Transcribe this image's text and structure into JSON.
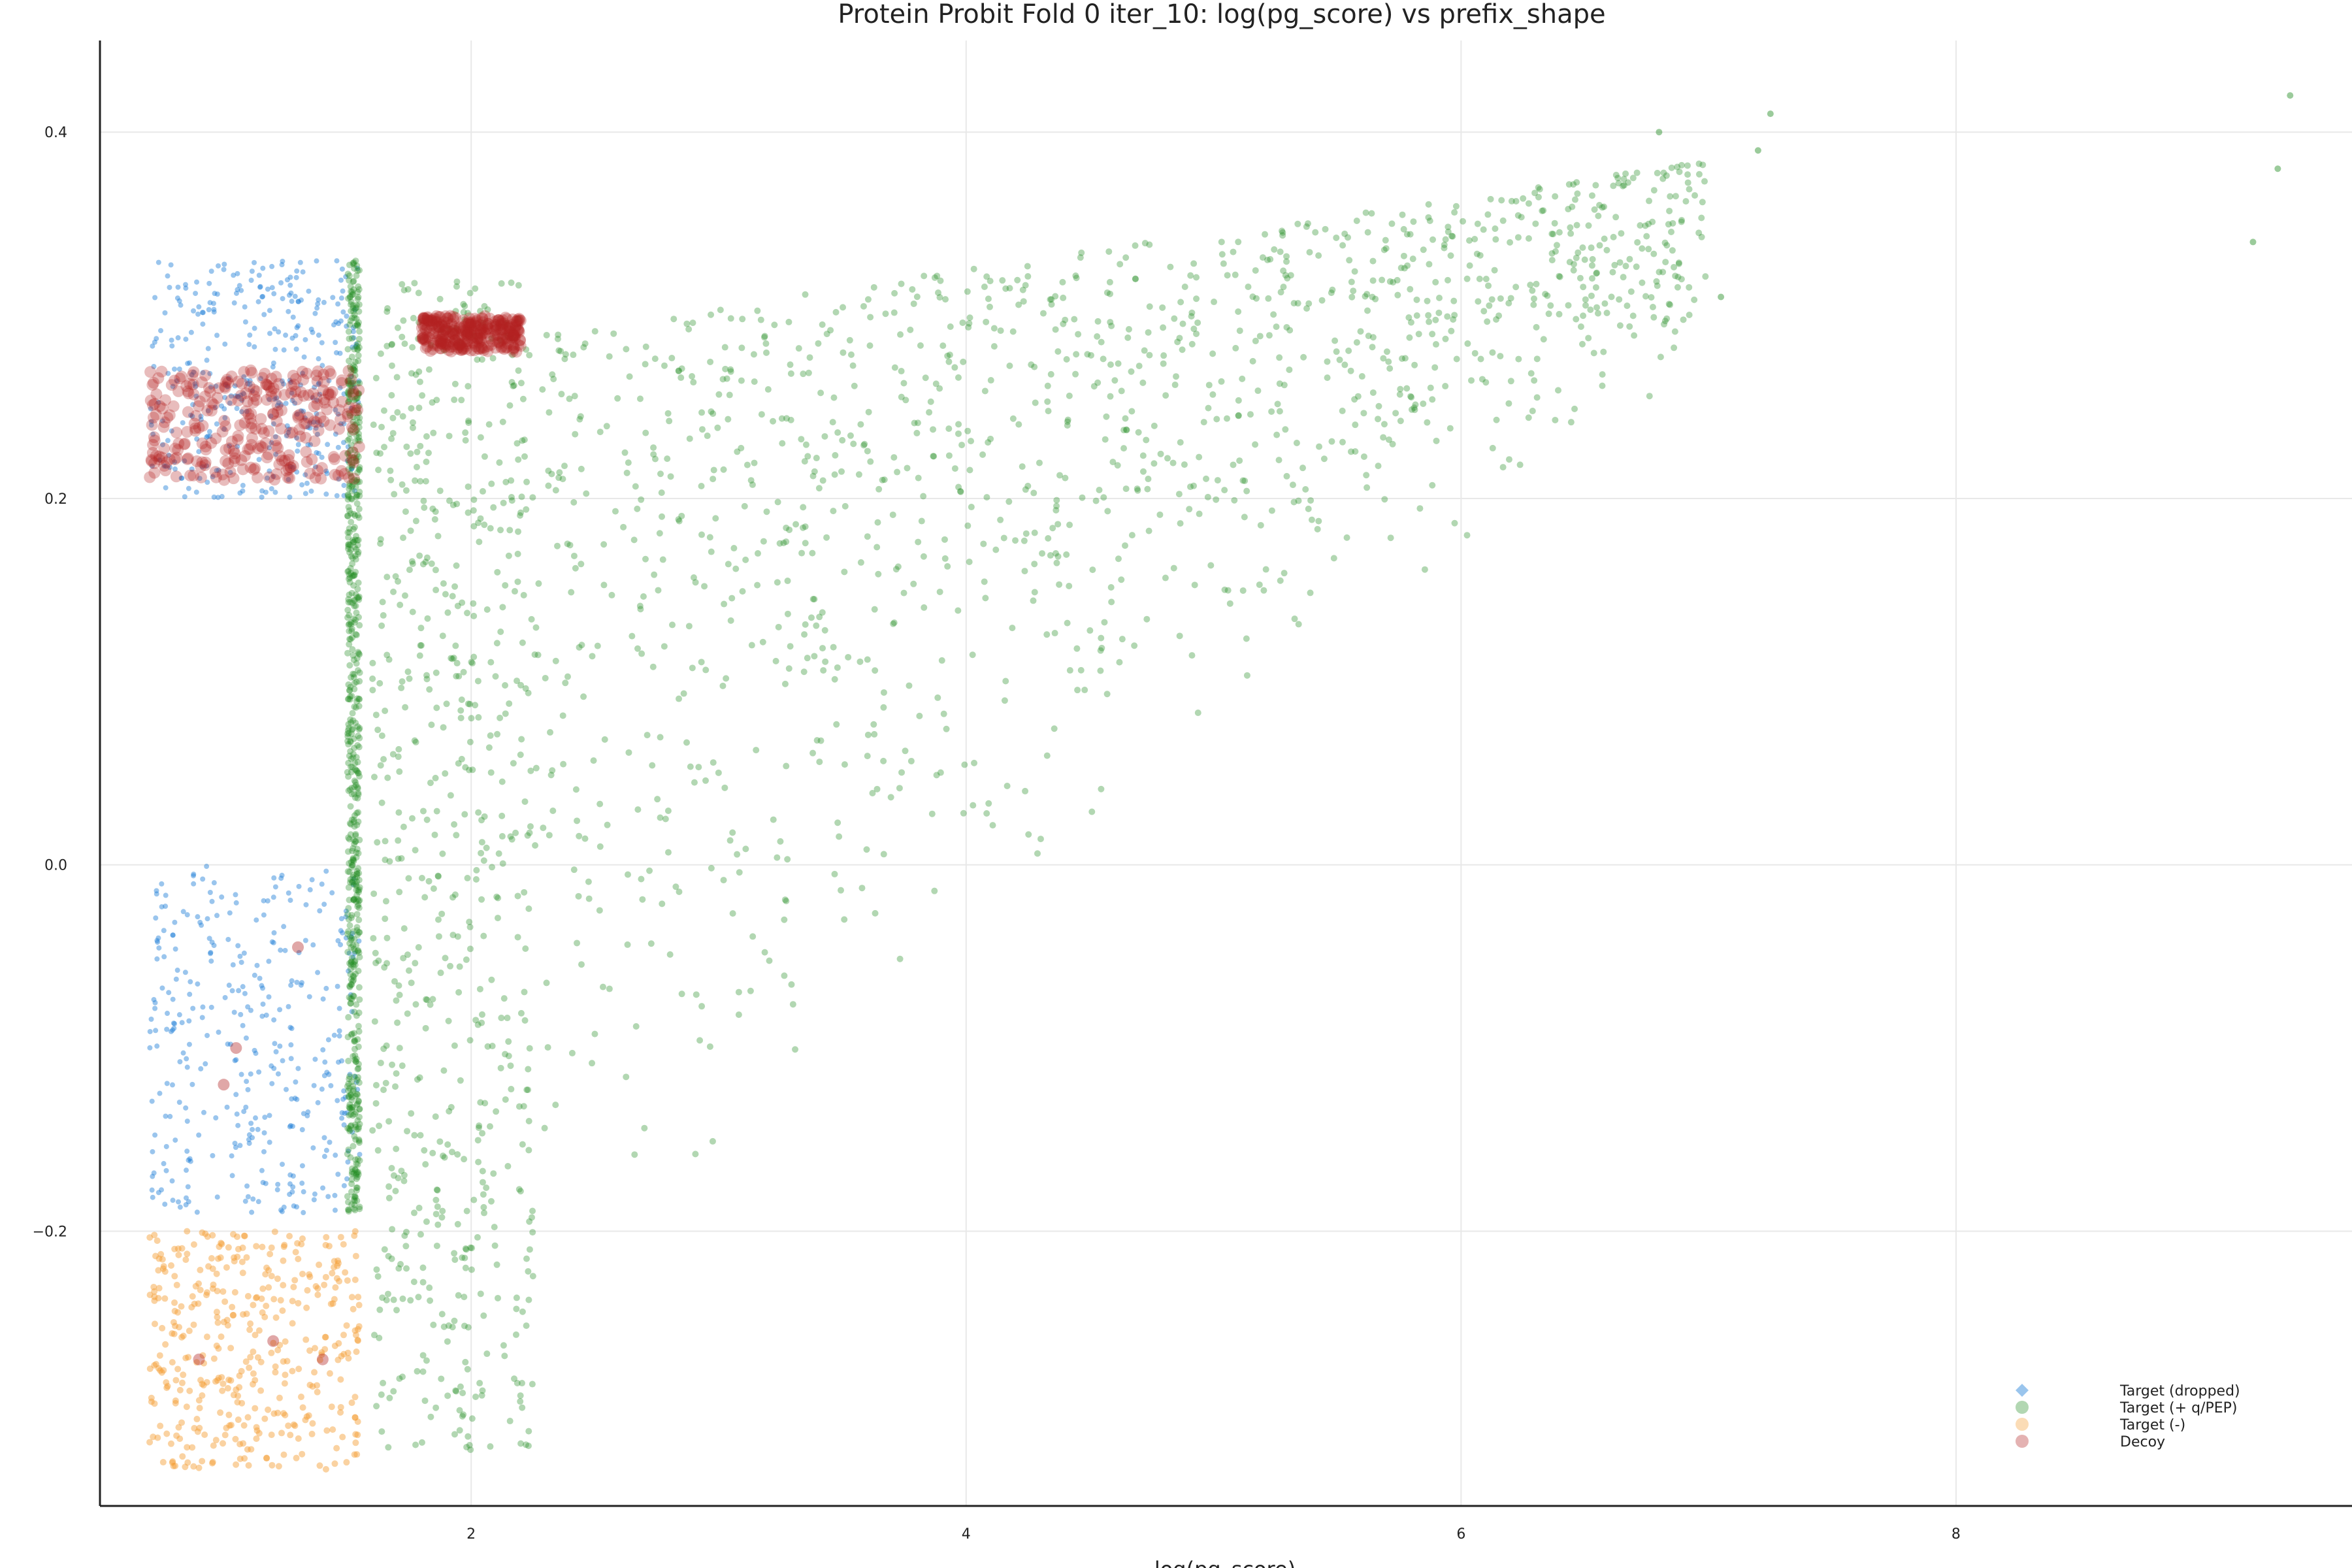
{
  "chart_data": {
    "type": "scatter",
    "title": "Protein Probit Fold 0 iter_10: log(pg_score) vs prefix_shape",
    "xlabel": "log(pg_score)",
    "ylabel": "",
    "xlim": [
      0.5,
      9.6
    ],
    "ylim": [
      -0.35,
      0.45
    ],
    "xticks": [
      2,
      4,
      6,
      8
    ],
    "yticks": [
      -0.2,
      0.0,
      0.2,
      0.4
    ],
    "xtick_labels": [
      "2",
      "4",
      "6",
      "8"
    ],
    "ytick_labels": [
      "−0.2",
      "0.0",
      "0.2",
      "0.4"
    ],
    "grid": true,
    "legend_position": "bottom-right",
    "series": [
      {
        "name": "Target (dropped)",
        "color": "#1f7fd8",
        "marker": "diamond",
        "clusters": [
          {
            "x": [
              0.7,
              1.55
            ],
            "y": [
              0.2,
              0.33
            ]
          },
          {
            "x": [
              0.7,
              1.55
            ],
            "y": [
              -0.19,
              0.0
            ]
          }
        ]
      },
      {
        "name": "Target (+ q/PEP)",
        "color": "#228b22",
        "marker": "circle",
        "clusters": [
          {
            "x": [
              1.5,
              1.55
            ],
            "y": [
              -0.19,
              0.33
            ]
          },
          {
            "x": [
              1.6,
              2.25
            ],
            "y": [
              -0.32,
              0.32
            ]
          },
          {
            "x": [
              2.25,
              4.5
            ],
            "y": [
              -0.25,
              0.36
            ]
          },
          {
            "x": [
              4.5,
              7.0
            ],
            "y": [
              0.0,
              0.39
            ]
          }
        ],
        "points": [
          [
            7.25,
            0.41
          ],
          [
            7.2,
            0.39
          ],
          [
            9.35,
            0.42
          ],
          [
            9.3,
            0.38
          ],
          [
            9.2,
            0.34
          ],
          [
            7.05,
            0.31
          ],
          [
            6.8,
            0.4
          ]
        ]
      },
      {
        "name": "Target (-)",
        "color": "#f39c2e",
        "marker": "circle",
        "clusters": [
          {
            "x": [
              0.7,
              1.55
            ],
            "y": [
              -0.33,
              -0.2
            ]
          }
        ]
      },
      {
        "name": "Decoy",
        "color": "#b22222",
        "marker": "circle",
        "clusters": [
          {
            "x": [
              0.7,
              1.55
            ],
            "y": [
              0.21,
              0.27
            ]
          },
          {
            "x": [
              1.8,
              2.2
            ],
            "y": [
              0.28,
              0.3
            ]
          }
        ],
        "points": [
          [
            0.9,
            -0.27
          ],
          [
            1.2,
            -0.26
          ],
          [
            1.4,
            -0.27
          ],
          [
            1.0,
            -0.12
          ],
          [
            1.3,
            -0.045
          ],
          [
            1.05,
            -0.1
          ]
        ]
      }
    ]
  }
}
